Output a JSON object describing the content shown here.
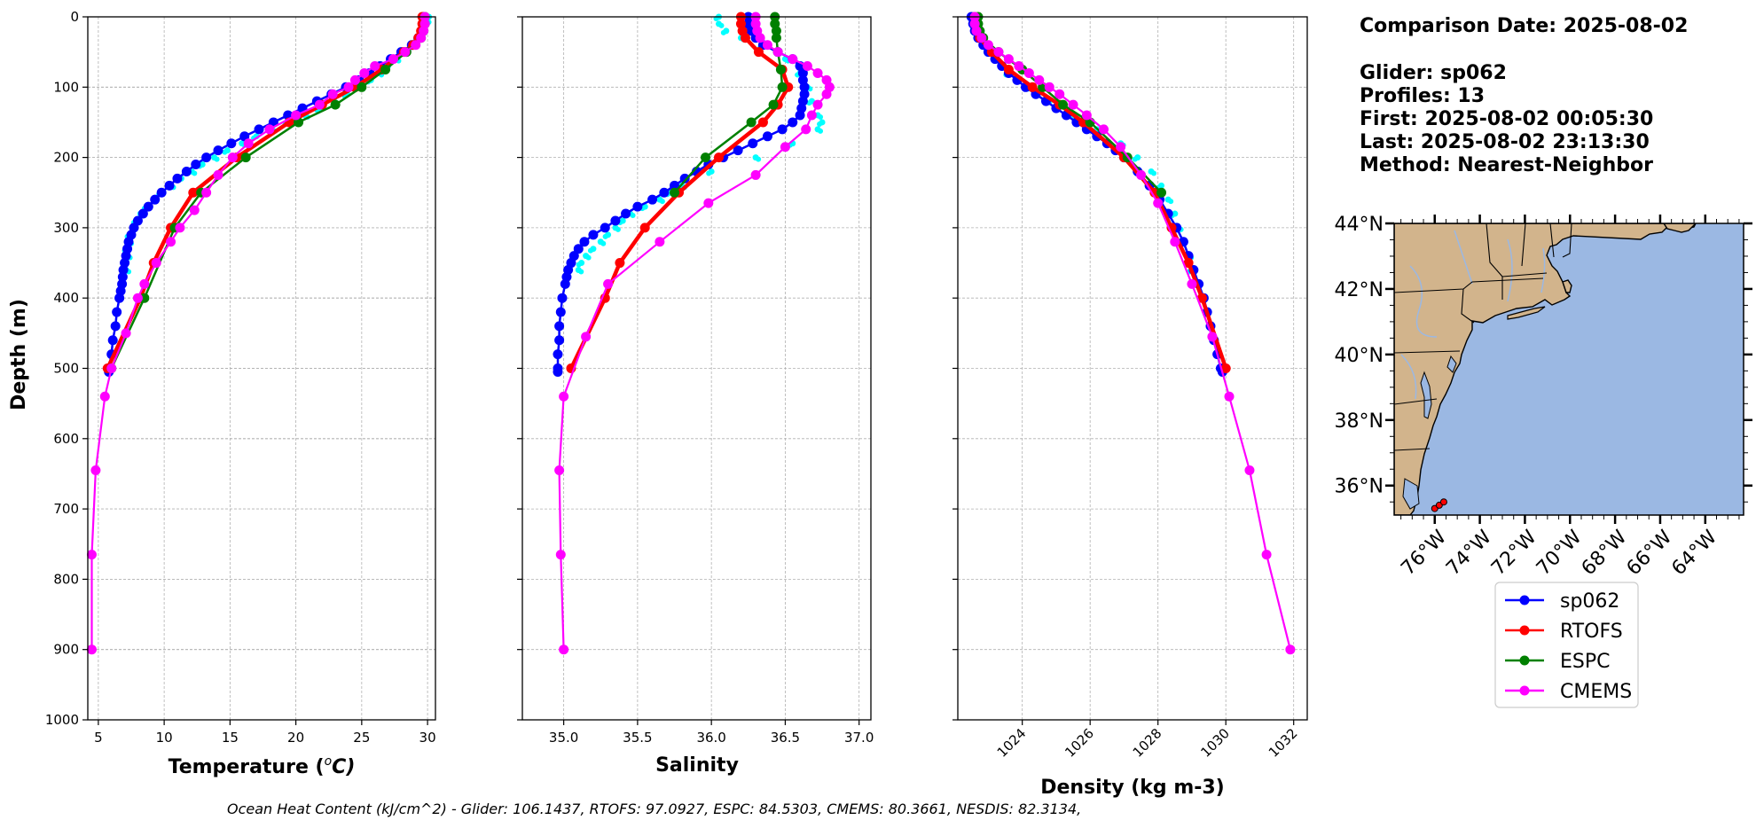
{
  "info": {
    "comparison_date": "Comparison Date: 2025-08-02",
    "glider": "Glider: sp062",
    "profiles": "Profiles: 13",
    "first": "First: 2025-08-02 00:05:30",
    "last": "Last: 2025-08-02 23:13:30",
    "method": "Method: Nearest-Neighbor"
  },
  "footer": "Ocean Heat Content (kJ/cm^2) - Glider: 106.1437,  RTOFS: 97.0927,  ESPC: 84.5303,  CMEMS: 80.3661,  NESDIS: 82.3134,",
  "colors": {
    "sp062": "#0000ff",
    "sp062_raw": "#00ffff",
    "RTOFS": "#ff0000",
    "ESPC": "#008000",
    "CMEMS": "#ff00ff",
    "land": "#d2b48c",
    "ocean": "#9bb8e3",
    "grid": "#b0b0b0"
  },
  "chart_data": [
    {
      "type": "line",
      "id": "temperature",
      "xlabel": "Temperature (°C)",
      "xlabel_main": "Temperature (",
      "xlabel_sup": "o",
      "xlabel_unit": "C)",
      "ylabel": "Depth (m)",
      "xlim": [
        4.2,
        30.6
      ],
      "ylim": [
        1000,
        0
      ],
      "xticks": [
        5,
        10,
        15,
        20,
        25,
        30
      ],
      "yticks": [
        0,
        100,
        200,
        300,
        400,
        500,
        600,
        700,
        800,
        900,
        1000
      ],
      "series": [
        {
          "name": "sp062 raw",
          "style": "scatter",
          "depth": [
            0,
            5,
            10,
            20,
            30,
            40,
            50,
            60,
            70,
            80,
            90,
            100,
            110,
            120,
            130,
            140,
            150,
            160,
            170,
            180,
            190,
            200,
            210,
            220,
            230,
            240,
            250,
            260,
            270,
            280,
            290,
            300,
            310,
            320,
            330,
            340,
            350,
            360
          ],
          "x": [
            30.1,
            29.9,
            29.8,
            29.6,
            29.3,
            28.8,
            28.2,
            27.6,
            27.0,
            26.3,
            25.7,
            24.9,
            23.9,
            22.9,
            21.8,
            20.7,
            19.4,
            18.2,
            17.0,
            15.9,
            14.8,
            13.8,
            12.9,
            12.1,
            11.3,
            10.5,
            9.8,
            9.2,
            8.7,
            8.2,
            7.9,
            7.6,
            7.4,
            7.3,
            7.2,
            7.2,
            7.1,
            7.1
          ]
        },
        {
          "name": "sp062",
          "depth": [
            0,
            10,
            20,
            30,
            40,
            50,
            60,
            70,
            80,
            90,
            100,
            110,
            120,
            130,
            140,
            150,
            160,
            170,
            180,
            190,
            200,
            210,
            220,
            230,
            240,
            250,
            260,
            270,
            280,
            290,
            300,
            310,
            320,
            330,
            340,
            350,
            360,
            370,
            380,
            390,
            400,
            420,
            440,
            460,
            480,
            500,
            505
          ],
          "x": [
            29.7,
            29.7,
            29.6,
            29.3,
            28.8,
            28.0,
            27.2,
            26.4,
            25.6,
            24.8,
            23.8,
            22.7,
            21.6,
            20.5,
            19.4,
            18.3,
            17.2,
            16.1,
            15.1,
            14.1,
            13.2,
            12.4,
            11.7,
            11.0,
            10.4,
            9.8,
            9.3,
            8.8,
            8.4,
            8.0,
            7.7,
            7.5,
            7.3,
            7.2,
            7.1,
            7.0,
            6.9,
            6.85,
            6.8,
            6.7,
            6.6,
            6.4,
            6.3,
            6.1,
            6.0,
            5.8,
            5.8
          ]
        },
        {
          "name": "RTOFS",
          "depth": [
            0,
            10,
            20,
            30,
            40,
            50,
            75,
            100,
            125,
            150,
            200,
            250,
            300,
            350,
            400,
            500
          ],
          "x": [
            29.6,
            29.6,
            29.5,
            29.3,
            28.9,
            28.2,
            26.5,
            24.5,
            22.0,
            19.5,
            15.5,
            12.2,
            10.5,
            9.2,
            8.2,
            5.7
          ]
        },
        {
          "name": "ESPC",
          "depth": [
            0,
            10,
            20,
            30,
            50,
            75,
            100,
            125,
            150,
            200,
            250,
            300,
            400,
            500
          ],
          "x": [
            29.8,
            29.8,
            29.7,
            29.5,
            28.4,
            26.8,
            25.0,
            23.0,
            20.2,
            16.2,
            12.8,
            10.8,
            8.5,
            6.0
          ]
        },
        {
          "name": "CMEMS",
          "depth": [
            0,
            10,
            20,
            30,
            40,
            50,
            60,
            70,
            80,
            90,
            100,
            110,
            125,
            140,
            160,
            180,
            200,
            225,
            250,
            275,
            300,
            320,
            350,
            380,
            400,
            450,
            500,
            540,
            645,
            765,
            900
          ],
          "x": [
            29.8,
            29.8,
            29.7,
            29.5,
            29.1,
            28.3,
            27.4,
            26.0,
            25.2,
            24.5,
            24.0,
            22.8,
            21.8,
            20.0,
            18.0,
            16.4,
            15.2,
            14.1,
            13.2,
            12.3,
            11.2,
            10.5,
            9.4,
            8.5,
            8.0,
            7.1,
            6.0,
            5.5,
            4.8,
            4.5,
            4.5
          ]
        }
      ]
    },
    {
      "type": "line",
      "id": "salinity",
      "xlabel": "Salinity",
      "xlim": [
        34.72,
        37.08
      ],
      "ylim": [
        1000,
        0
      ],
      "xticks": [
        35.0,
        35.5,
        36.0,
        36.5,
        37.0
      ],
      "xtick_labels": [
        "35.0",
        "35.5",
        "36.0",
        "36.5",
        "37.0"
      ],
      "series": [
        {
          "name": "sp062 raw",
          "style": "scatter",
          "depth": [
            0,
            10,
            20,
            30,
            40,
            60,
            80,
            100,
            120,
            140,
            150,
            160,
            180,
            200,
            220,
            240,
            250,
            260,
            270,
            280,
            290,
            300,
            310,
            320,
            330,
            340,
            350,
            360
          ],
          "x": [
            36.05,
            36.05,
            36.1,
            36.2,
            36.35,
            36.5,
            36.6,
            36.65,
            36.68,
            36.72,
            36.75,
            36.72,
            36.55,
            36.3,
            36.0,
            35.8,
            35.72,
            35.65,
            35.55,
            35.45,
            35.4,
            35.35,
            35.3,
            35.25,
            35.2,
            35.15,
            35.12,
            35.1
          ]
        },
        {
          "name": "sp062",
          "depth": [
            0,
            10,
            20,
            30,
            40,
            50,
            60,
            70,
            80,
            90,
            100,
            110,
            120,
            130,
            140,
            150,
            160,
            170,
            180,
            190,
            200,
            210,
            220,
            230,
            240,
            250,
            260,
            270,
            280,
            290,
            300,
            310,
            320,
            330,
            340,
            350,
            360,
            370,
            380,
            400,
            420,
            440,
            460,
            480,
            500,
            505
          ],
          "x": [
            36.25,
            36.25,
            36.27,
            36.3,
            36.35,
            36.45,
            36.55,
            36.6,
            36.62,
            36.62,
            36.63,
            36.63,
            36.62,
            36.61,
            36.6,
            36.55,
            36.48,
            36.38,
            36.28,
            36.18,
            36.08,
            35.98,
            35.9,
            35.82,
            35.75,
            35.68,
            35.6,
            35.5,
            35.42,
            35.35,
            35.28,
            35.2,
            35.14,
            35.1,
            35.07,
            35.05,
            35.03,
            35.02,
            35.01,
            34.99,
            34.98,
            34.97,
            34.97,
            34.96,
            34.96,
            34.96
          ]
        },
        {
          "name": "RTOFS",
          "depth": [
            0,
            10,
            20,
            30,
            50,
            75,
            100,
            125,
            150,
            200,
            250,
            300,
            350,
            400,
            500
          ],
          "x": [
            36.2,
            36.2,
            36.21,
            36.23,
            36.32,
            36.48,
            36.52,
            36.45,
            36.35,
            36.05,
            35.78,
            35.55,
            35.38,
            35.28,
            35.05
          ]
        },
        {
          "name": "ESPC",
          "depth": [
            0,
            10,
            20,
            30,
            50,
            75,
            100,
            125,
            150,
            200,
            250
          ],
          "x": [
            36.43,
            36.43,
            36.44,
            36.44,
            36.45,
            36.47,
            36.48,
            36.42,
            36.27,
            35.96,
            35.75
          ]
        },
        {
          "name": "CMEMS",
          "depth": [
            0,
            10,
            20,
            30,
            40,
            50,
            60,
            70,
            80,
            90,
            100,
            110,
            125,
            140,
            160,
            185,
            225,
            265,
            320,
            380,
            455,
            540,
            645,
            765,
            900
          ],
          "x": [
            36.3,
            36.3,
            36.31,
            36.33,
            36.38,
            36.45,
            36.55,
            36.65,
            36.72,
            36.78,
            36.8,
            36.78,
            36.72,
            36.68,
            36.64,
            36.5,
            36.3,
            35.98,
            35.65,
            35.3,
            35.15,
            35.0,
            34.97,
            34.98,
            35.0
          ]
        }
      ]
    },
    {
      "type": "line",
      "id": "density",
      "xlabel": "Density (kg m-3)",
      "xlim": [
        1022.1,
        1032.4
      ],
      "ylim": [
        1000,
        0
      ],
      "xticks": [
        1024,
        1026,
        1028,
        1030,
        1032
      ],
      "series": [
        {
          "name": "sp062 raw",
          "style": "scatter",
          "depth": [
            0,
            20,
            40,
            60,
            80,
            100,
            120,
            140,
            160,
            180,
            200,
            220,
            240,
            260,
            280,
            300,
            320,
            340,
            360
          ],
          "x": [
            1022.6,
            1022.7,
            1022.9,
            1023.2,
            1023.6,
            1024.1,
            1024.8,
            1025.5,
            1026.2,
            1026.9,
            1027.4,
            1027.8,
            1028.1,
            1028.3,
            1028.5,
            1028.6,
            1028.8,
            1028.9,
            1029.0
          ]
        },
        {
          "name": "sp062",
          "depth": [
            0,
            10,
            20,
            30,
            40,
            50,
            60,
            70,
            80,
            90,
            100,
            110,
            120,
            130,
            140,
            150,
            160,
            170,
            180,
            190,
            200,
            220,
            240,
            260,
            280,
            300,
            320,
            340,
            360,
            380,
            400,
            420,
            440,
            460,
            480,
            500,
            505
          ],
          "x": [
            1022.5,
            1022.55,
            1022.6,
            1022.7,
            1022.85,
            1023.0,
            1023.2,
            1023.4,
            1023.6,
            1023.85,
            1024.1,
            1024.4,
            1024.7,
            1025.0,
            1025.3,
            1025.6,
            1025.9,
            1026.2,
            1026.5,
            1026.75,
            1027.0,
            1027.4,
            1027.75,
            1028.05,
            1028.3,
            1028.55,
            1028.75,
            1028.9,
            1029.05,
            1029.2,
            1029.35,
            1029.45,
            1029.55,
            1029.65,
            1029.75,
            1029.85,
            1029.9
          ]
        },
        {
          "name": "RTOFS",
          "depth": [
            0,
            10,
            20,
            30,
            50,
            75,
            100,
            125,
            150,
            200,
            250,
            300,
            350,
            400,
            500
          ],
          "x": [
            1022.6,
            1022.6,
            1022.65,
            1022.75,
            1023.1,
            1023.6,
            1024.3,
            1025.1,
            1025.8,
            1027.0,
            1027.9,
            1028.4,
            1028.9,
            1029.3,
            1030.0
          ]
        },
        {
          "name": "ESPC",
          "depth": [
            0,
            10,
            20,
            30,
            50,
            75,
            100,
            125,
            150,
            200,
            250
          ],
          "x": [
            1022.7,
            1022.7,
            1022.75,
            1022.85,
            1023.3,
            1024.0,
            1024.6,
            1025.2,
            1026.0,
            1027.1,
            1028.1
          ]
        },
        {
          "name": "CMEMS",
          "depth": [
            0,
            10,
            20,
            30,
            40,
            50,
            60,
            70,
            80,
            90,
            100,
            110,
            125,
            140,
            160,
            185,
            225,
            265,
            320,
            380,
            455,
            540,
            645,
            765,
            900
          ],
          "x": [
            1022.6,
            1022.6,
            1022.65,
            1022.8,
            1023.0,
            1023.3,
            1023.6,
            1023.9,
            1024.2,
            1024.5,
            1024.8,
            1025.1,
            1025.5,
            1025.9,
            1026.4,
            1026.9,
            1027.5,
            1028.0,
            1028.5,
            1029.0,
            1029.6,
            1030.1,
            1030.7,
            1031.2,
            1031.9
          ]
        }
      ]
    }
  ],
  "map": {
    "lat_labels": [
      "44°N",
      "42°N",
      "40°N",
      "38°N",
      "36°N"
    ],
    "lat_values": [
      44,
      42,
      40,
      38,
      36
    ],
    "lon_labels": [
      "76°W",
      "74°W",
      "72°W",
      "70°W",
      "68°W",
      "66°W",
      "64°W"
    ],
    "lon_values": [
      -76,
      -74,
      -72,
      -70,
      -68,
      -66,
      -64
    ],
    "extent": {
      "lon_min": -77.8,
      "lon_max": -62.3,
      "lat_min": 35.1,
      "lat_max": 44.0
    },
    "glider_track": {
      "lon": [
        -76.0,
        -75.8,
        -75.6
      ],
      "lat": [
        35.3,
        35.4,
        35.5
      ]
    }
  },
  "legend": {
    "items": [
      {
        "label": "sp062",
        "key": "sp062"
      },
      {
        "label": "RTOFS",
        "key": "RTOFS"
      },
      {
        "label": "ESPC",
        "key": "ESPC"
      },
      {
        "label": "CMEMS",
        "key": "CMEMS"
      }
    ]
  }
}
